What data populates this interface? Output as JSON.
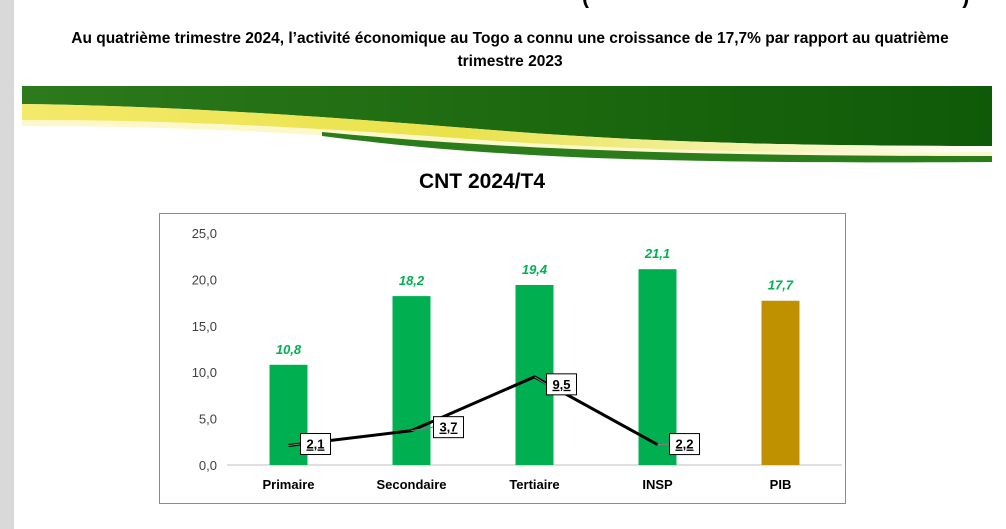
{
  "page": {
    "subtitle_line1": "Au quatrième trimestre 2024, l’activité économique au Togo a connu une croissance de 17,7% par rapport au quatrième",
    "subtitle_line2": "trimestre 2023"
  },
  "colors": {
    "bar_green": "#00b050",
    "bar_gold": "#bf9000",
    "value_label_green": "#00b050",
    "value_label_gold": "#00b050",
    "line": "#000000",
    "banner_dark_green": "#1a6b12",
    "banner_yellow": "#f2e34a"
  },
  "chart_data": {
    "type": "bar",
    "title": "CNT 2024/T4",
    "categories": [
      "Primaire",
      "Secondaire",
      "Tertiaire",
      "INSP",
      "PIB"
    ],
    "series": [
      {
        "type": "bar",
        "values": [
          10.8,
          18.2,
          19.4,
          21.1,
          17.7
        ],
        "value_labels": [
          "10,8",
          "18,2",
          "19,4",
          "21,1",
          "17,7"
        ]
      },
      {
        "type": "line",
        "values": [
          2.1,
          3.7,
          9.5,
          2.2,
          null
        ],
        "value_labels": [
          "2,1",
          "3,7",
          "9,5",
          "2,2"
        ]
      }
    ],
    "ylim": [
      0,
      25
    ],
    "yticks": [
      "0,0",
      "5,0",
      "10,0",
      "15,0",
      "20,0",
      "25,0"
    ],
    "grid": false,
    "legend": "none"
  }
}
